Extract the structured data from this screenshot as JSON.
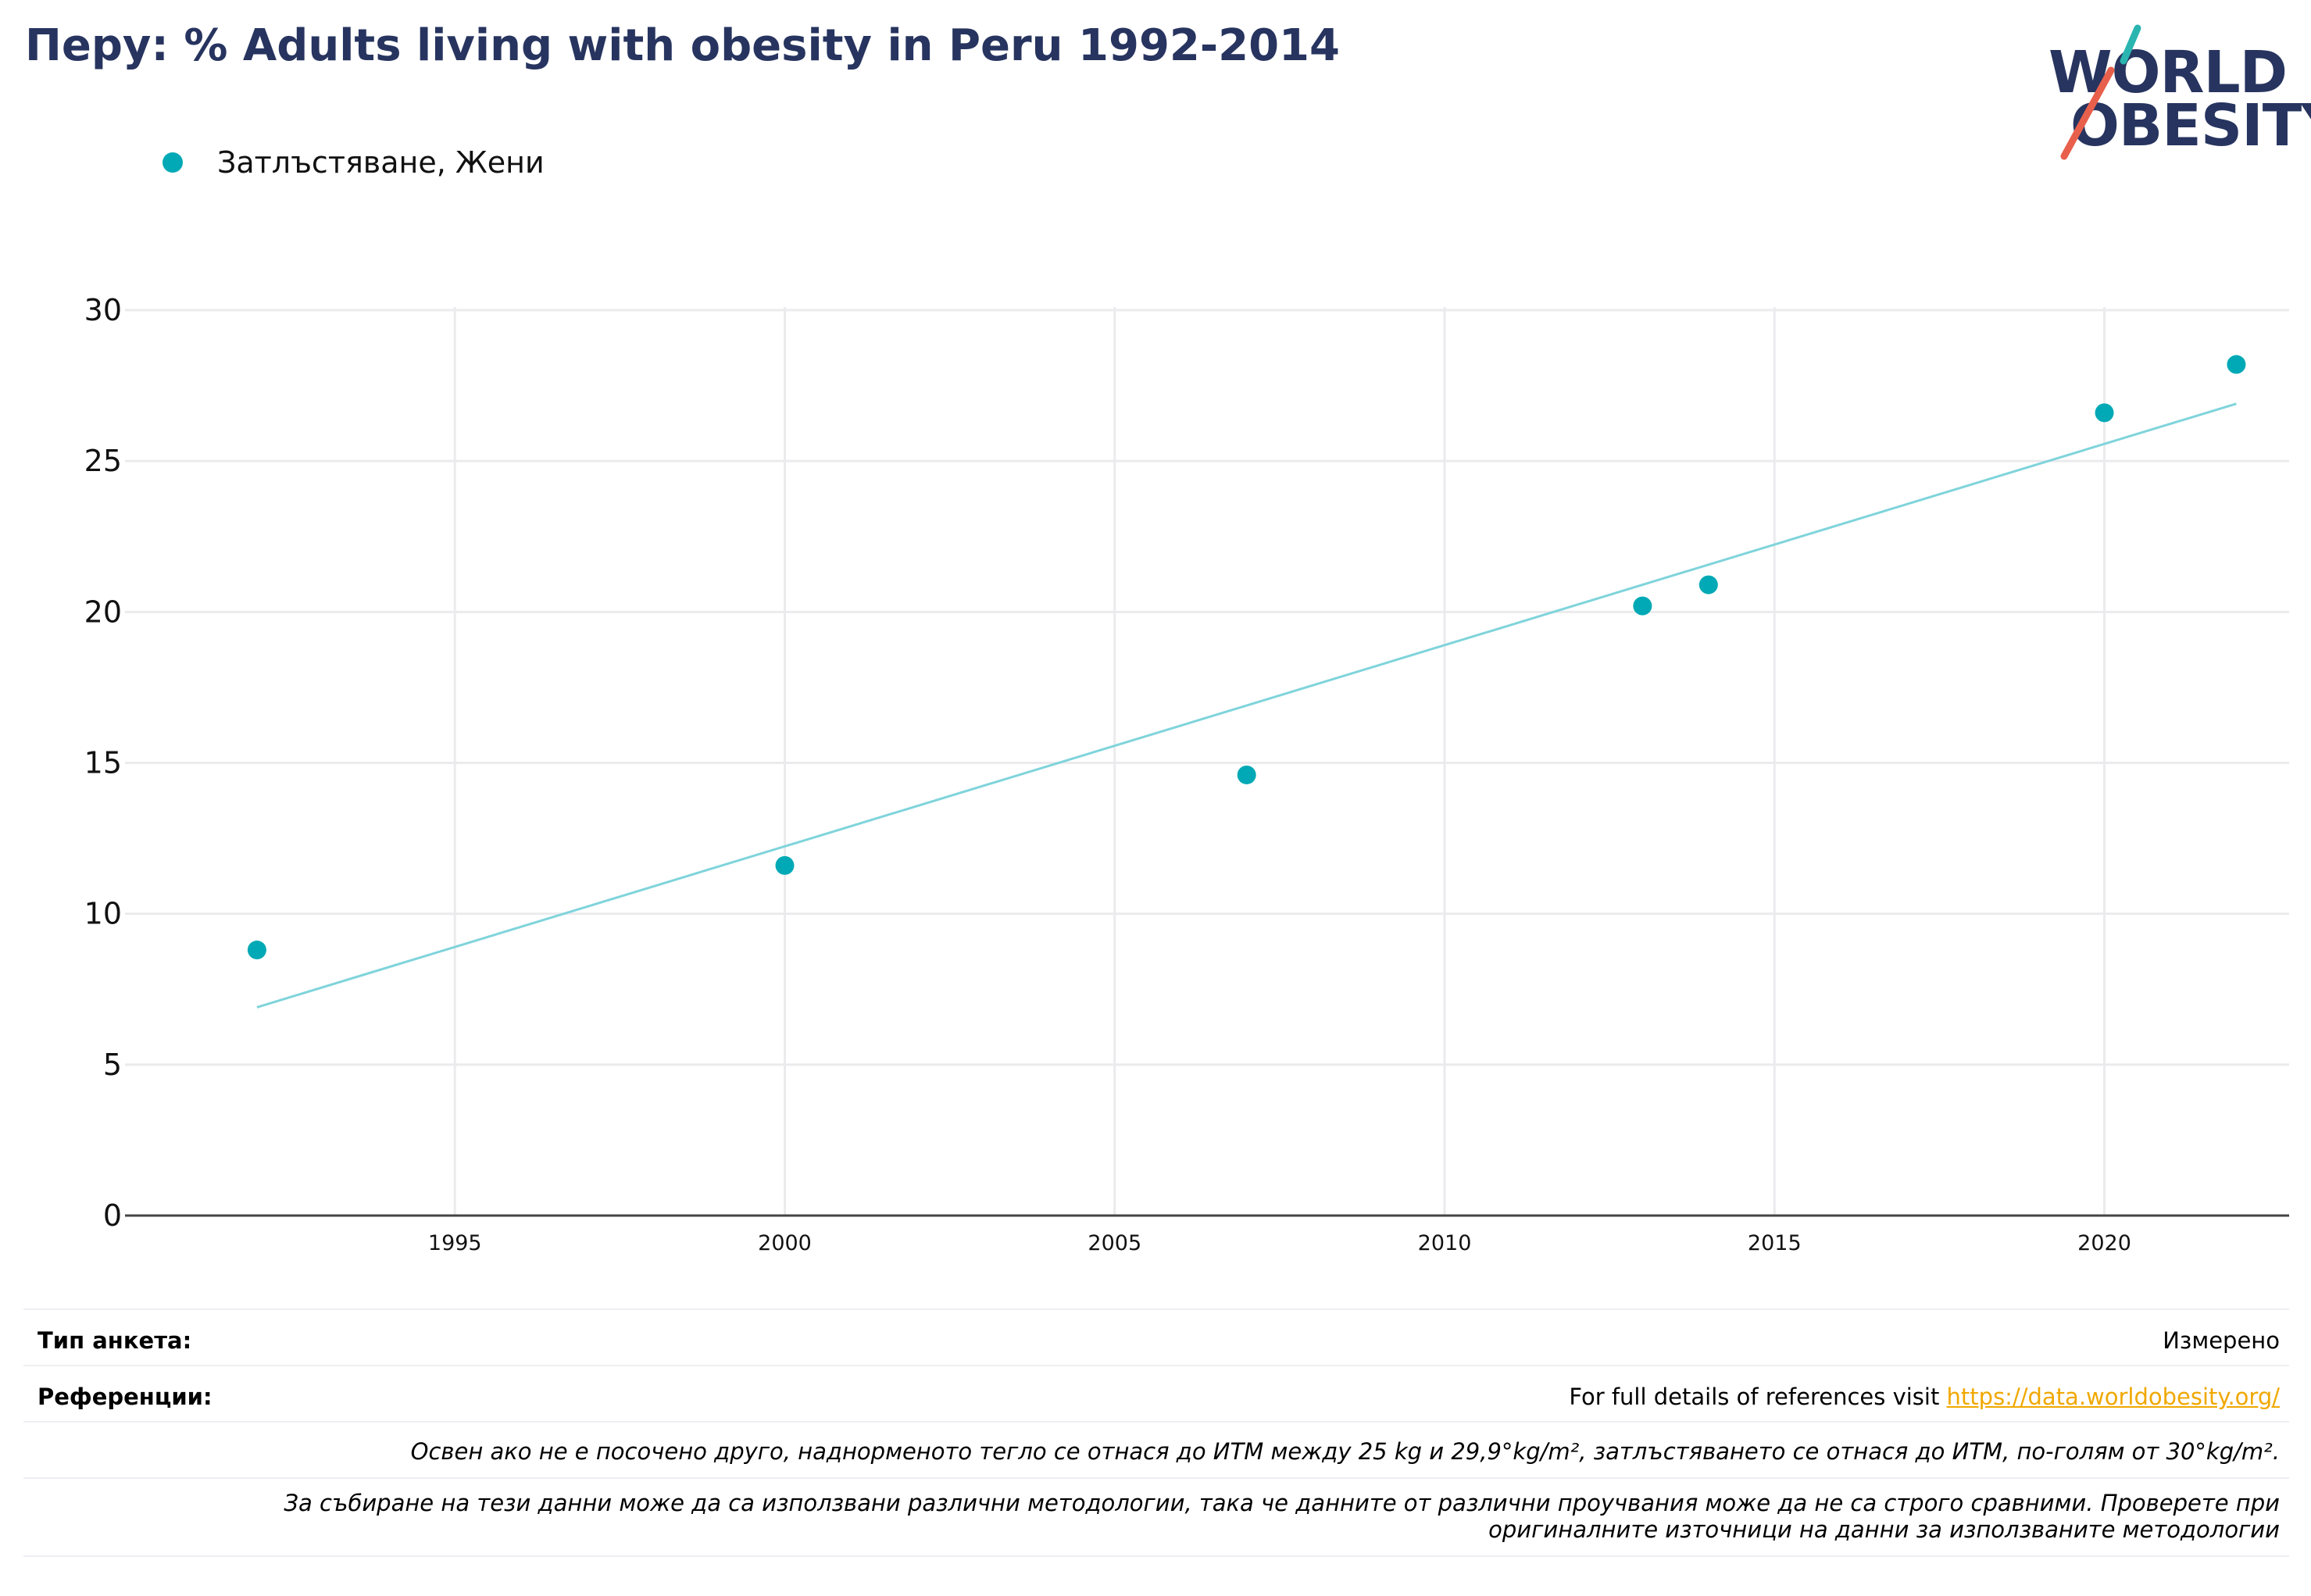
{
  "header": {
    "title": "Перу: % Adults living with obesity in Peru 1992-2014",
    "logo_line1": "WORLD",
    "logo_line2": "OBESITY"
  },
  "legend": {
    "label": "Затлъстяване, Жени"
  },
  "colors": {
    "title": "#27345f",
    "series": "#00a9b5",
    "trend": "#7fd4db",
    "grid": "#ebebee",
    "axis": "#444444",
    "logo_slash_teal": "#2ab5b0",
    "logo_slash_red": "#e8604c",
    "link": "#f0a800"
  },
  "chart_data": {
    "type": "scatter",
    "title": "Перу: % Adults living with obesity in Peru 1992-2014",
    "xlabel": "",
    "ylabel": "",
    "xlim": [
      1990,
      2022.8
    ],
    "ylim": [
      0,
      30
    ],
    "x_ticks": [
      1995,
      2000,
      2005,
      2010,
      2015,
      2020
    ],
    "y_ticks": [
      0,
      5,
      10,
      15,
      20,
      25,
      30
    ],
    "grid": true,
    "legend_position": "top-left",
    "series": [
      {
        "name": "Затлъстяване, Жени",
        "x": [
          1992,
          2000,
          2007,
          2013,
          2014,
          2020,
          2022
        ],
        "y": [
          8.8,
          11.6,
          14.6,
          20.2,
          20.9,
          26.6,
          28.2
        ]
      }
    ],
    "trendline": {
      "x": [
        1992,
        2022
      ],
      "y": [
        6.9,
        26.9
      ]
    }
  },
  "footer": {
    "survey_type_label": "Тип анкета:",
    "survey_type_value": "Измерено",
    "references_label": "Референции:",
    "references_text": "For full details of references visit ",
    "references_link": "https://data.worldobesity.org/",
    "note1": "Освен ако не е посочено друго, наднорменото тегло се отнася до ИТМ между 25 kg и 29,9°kg/m², затлъстяването се отнася до ИТМ, по-голям от 30°kg/m².",
    "note2": "За събиране на тези данни може да са използвани различни методологии, така че данните от различни проучвания може да не са строго сравними. Проверете при оригиналните източници на данни за използваните методологии"
  }
}
